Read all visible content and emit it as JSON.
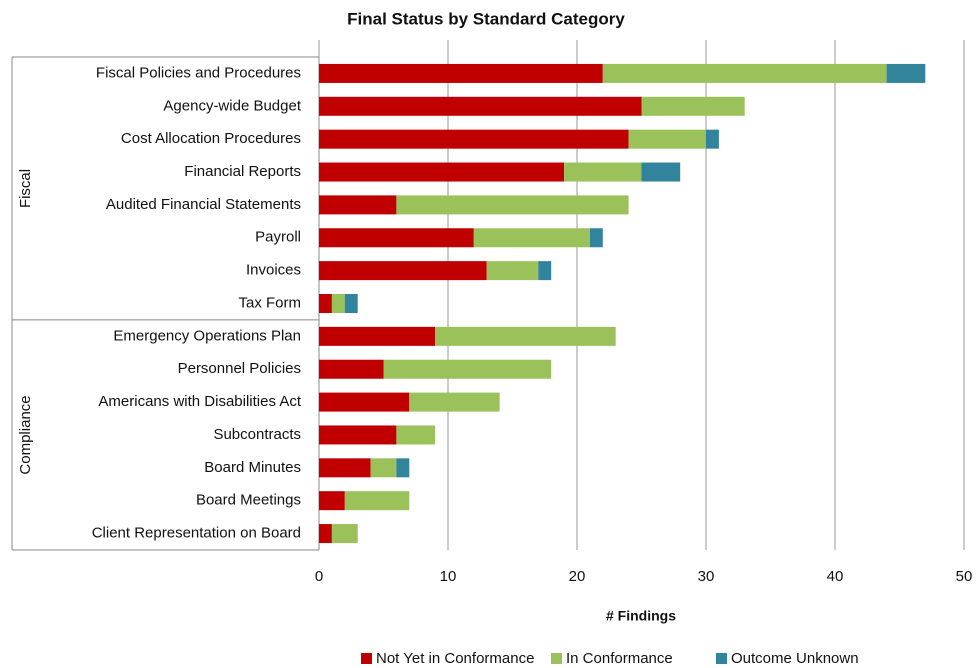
{
  "chart_data": {
    "type": "stacked_barh",
    "title": "Final Status by Standard Category",
    "xlabel": "# Findings",
    "groups": [
      "Fiscal",
      "Compliance"
    ],
    "categories": [
      "Fiscal Policies and Procedures",
      "Agency-wide Budget",
      "Cost Allocation Procedures",
      "Financial Reports",
      "Audited Financial Statements",
      "Payroll",
      "Invoices",
      "Tax Form",
      "Emergency Operations Plan",
      "Personnel Policies",
      "Americans with Disabilities Act",
      "Subcontracts",
      "Board Minutes",
      "Board Meetings",
      "Client Representation on Board"
    ],
    "series": [
      {
        "name": "Not Yet in Conformance",
        "color": "#c00000",
        "values": [
          22,
          25,
          24,
          19,
          6,
          12,
          13,
          1,
          9,
          5,
          7,
          6,
          4,
          2,
          1
        ]
      },
      {
        "name": "In Conformance",
        "color": "#9bc25a",
        "values": [
          22,
          8,
          6,
          6,
          18,
          9,
          4,
          1,
          14,
          13,
          7,
          3,
          2,
          5,
          2
        ]
      },
      {
        "name": "Outcome Unknown",
        "color": "#31849b",
        "values": [
          3,
          0,
          1,
          3,
          0,
          1,
          1,
          1,
          0,
          0,
          0,
          0,
          1,
          0,
          0
        ]
      }
    ],
    "xlim": [
      0,
      50
    ],
    "xticks": [
      0,
      10,
      20,
      30,
      40,
      50
    ],
    "grid": true
  }
}
